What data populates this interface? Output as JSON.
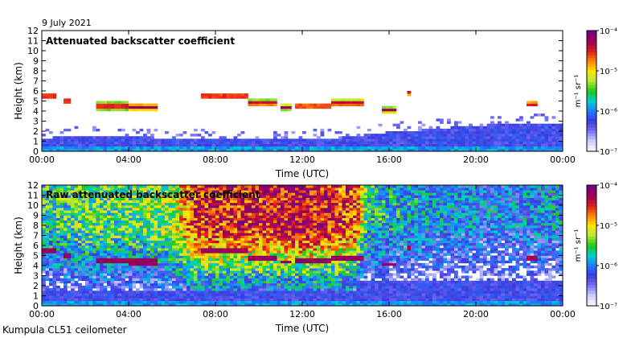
{
  "header": {
    "date": "9 July 2021"
  },
  "footer": {
    "instrument": "Kumpula CL51 ceilometer"
  },
  "colorscale": {
    "stops": [
      "#f5f5ff",
      "#c8c8ff",
      "#6e6ef5",
      "#3a3ae0",
      "#1f7fff",
      "#00d2c8",
      "#1ec81e",
      "#b4e632",
      "#ffe600",
      "#ff8c00",
      "#e61e1e",
      "#a00050",
      "#7a0080"
    ],
    "missing": "#ffffff"
  },
  "chart_data": [
    {
      "type": "heatmap",
      "title": "Attenuated backscatter coefficient",
      "xlabel": "Time (UTC)",
      "ylabel": "Height (km)",
      "x_ticks": [
        "00:00",
        "04:00",
        "08:00",
        "12:00",
        "16:00",
        "20:00",
        "00:00"
      ],
      "xlim_hours": [
        0,
        24
      ],
      "ylim": [
        0,
        12
      ],
      "y_ticks": [
        0,
        1,
        2,
        3,
        4,
        5,
        6,
        7,
        8,
        9,
        10,
        11,
        12
      ],
      "colorbar": {
        "label": "m⁻¹ sr⁻¹",
        "ticks": [
          "10⁻⁴",
          "10⁻⁵",
          "10⁻⁶",
          "10⁻⁷"
        ],
        "range": [
          1e-07,
          0.0001
        ],
        "scale": "log"
      },
      "boundary_layer": [
        {
          "hour": 0,
          "top_km": 1.3
        },
        {
          "hour": 2,
          "top_km": 1.6
        },
        {
          "hour": 4,
          "top_km": 1.5
        },
        {
          "hour": 6,
          "top_km": 1.3
        },
        {
          "hour": 8,
          "top_km": 1.2
        },
        {
          "hour": 12,
          "top_km": 1.2
        },
        {
          "hour": 14,
          "top_km": 1.4
        },
        {
          "hour": 16,
          "top_km": 1.9
        },
        {
          "hour": 18,
          "top_km": 2.2
        },
        {
          "hour": 20,
          "top_km": 2.6
        },
        {
          "hour": 22,
          "top_km": 2.7
        },
        {
          "hour": 24,
          "top_km": 2.8
        }
      ],
      "cloud_layers": [
        {
          "start_hour": 0.0,
          "end_hour": 0.6,
          "height_km": 5.5,
          "thickness_km": 0.35
        },
        {
          "start_hour": 1.0,
          "end_hour": 1.3,
          "height_km": 5.0,
          "thickness_km": 0.35
        },
        {
          "start_hour": 2.5,
          "end_hour": 4.0,
          "height_km": 4.5,
          "thickness_km": 0.4
        },
        {
          "start_hour": 4.0,
          "end_hour": 5.4,
          "height_km": 4.4,
          "thickness_km": 0.4
        },
        {
          "start_hour": 7.4,
          "end_hour": 9.5,
          "height_km": 5.5,
          "thickness_km": 0.35
        },
        {
          "start_hour": 9.5,
          "end_hour": 10.8,
          "height_km": 4.8,
          "thickness_km": 0.35
        },
        {
          "start_hour": 11.0,
          "end_hour": 11.5,
          "height_km": 4.4,
          "thickness_km": 0.3
        },
        {
          "start_hour": 11.7,
          "end_hour": 13.3,
          "height_km": 4.5,
          "thickness_km": 0.3
        },
        {
          "start_hour": 13.3,
          "end_hour": 14.8,
          "height_km": 4.8,
          "thickness_km": 0.4
        },
        {
          "start_hour": 15.7,
          "end_hour": 16.3,
          "height_km": 4.1,
          "thickness_km": 0.3
        },
        {
          "start_hour": 16.8,
          "end_hour": 17.0,
          "height_km": 5.8,
          "thickness_km": 0.3
        },
        {
          "start_hour": 22.3,
          "end_hour": 22.8,
          "height_km": 4.7,
          "thickness_km": 0.3
        }
      ]
    },
    {
      "type": "heatmap",
      "title": "Raw attenuated backscatter coefficient",
      "xlabel": "Time (UTC)",
      "ylabel": "Height (km)",
      "x_ticks": [
        "00:00",
        "04:00",
        "08:00",
        "12:00",
        "16:00",
        "20:00",
        "00:00"
      ],
      "xlim_hours": [
        0,
        24
      ],
      "ylim": [
        0,
        12
      ],
      "y_ticks": [
        0,
        1,
        2,
        3,
        4,
        5,
        6,
        7,
        8,
        9,
        10,
        11,
        12
      ],
      "colorbar": {
        "label": "m⁻¹ sr⁻¹",
        "ticks": [
          "10⁻⁴",
          "10⁻⁵",
          "10⁻⁶",
          "10⁻⁷"
        ],
        "range": [
          1e-07,
          0.0001
        ],
        "scale": "log"
      },
      "noise_level": [
        {
          "hour": 0,
          "level": 0.45
        },
        {
          "hour": 2,
          "level": 0.5
        },
        {
          "hour": 4,
          "level": 0.5
        },
        {
          "hour": 6,
          "level": 0.55
        },
        {
          "hour": 7,
          "level": 0.85
        },
        {
          "hour": 10,
          "level": 0.85
        },
        {
          "hour": 12,
          "level": 0.9
        },
        {
          "hour": 14.5,
          "level": 0.8
        },
        {
          "hour": 15,
          "level": 0.45
        },
        {
          "hour": 18,
          "level": 0.35
        },
        {
          "hour": 21,
          "level": 0.3
        },
        {
          "hour": 24,
          "level": 0.35
        }
      ]
    }
  ]
}
